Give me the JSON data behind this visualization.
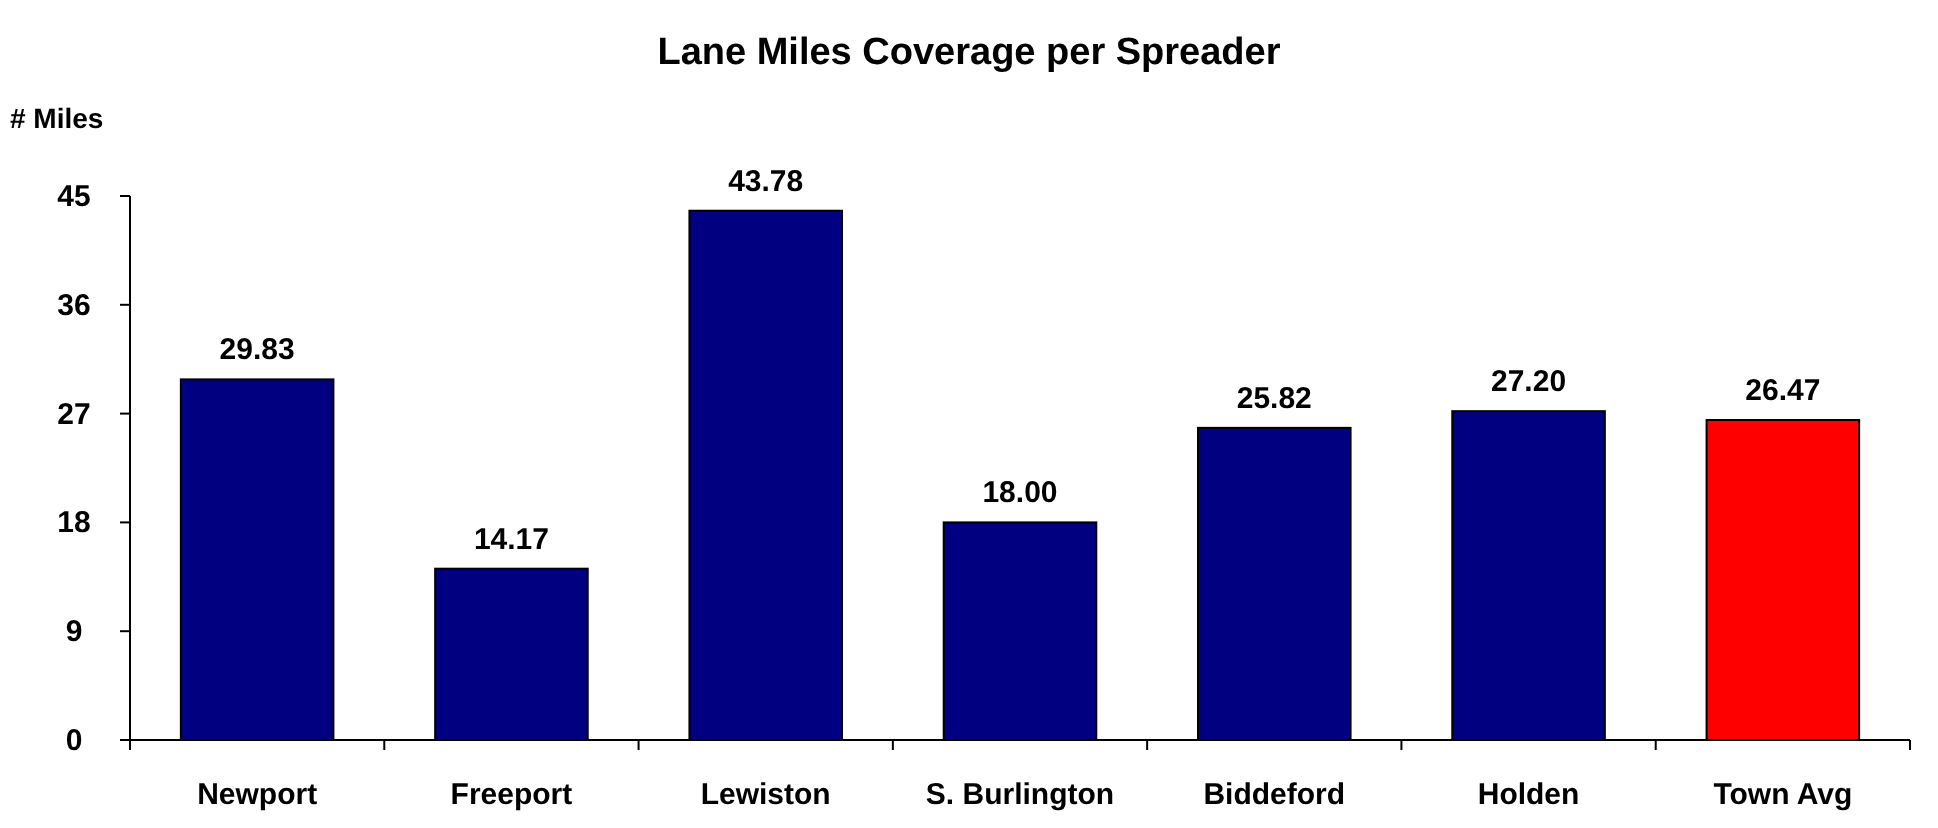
{
  "chart_data": {
    "type": "bar",
    "title": "Lane Miles Coverage per Spreader",
    "ylabel": "# Miles",
    "categories": [
      "Newport",
      "Freeport",
      "Lewiston",
      "S. Burlington",
      "Biddeford",
      "Holden",
      "Town Avg"
    ],
    "values": [
      29.83,
      14.17,
      43.78,
      18.0,
      25.82,
      27.2,
      26.47
    ],
    "value_labels": [
      "29.83",
      "14.17",
      "43.78",
      "18.00",
      "25.82",
      "27.20",
      "26.47"
    ],
    "colors": [
      "#000080",
      "#000080",
      "#000080",
      "#000080",
      "#000080",
      "#000080",
      "#ff0000"
    ],
    "ylim": [
      0,
      45
    ],
    "yticks": [
      0,
      9,
      18,
      27,
      36,
      45
    ],
    "grid": false
  }
}
